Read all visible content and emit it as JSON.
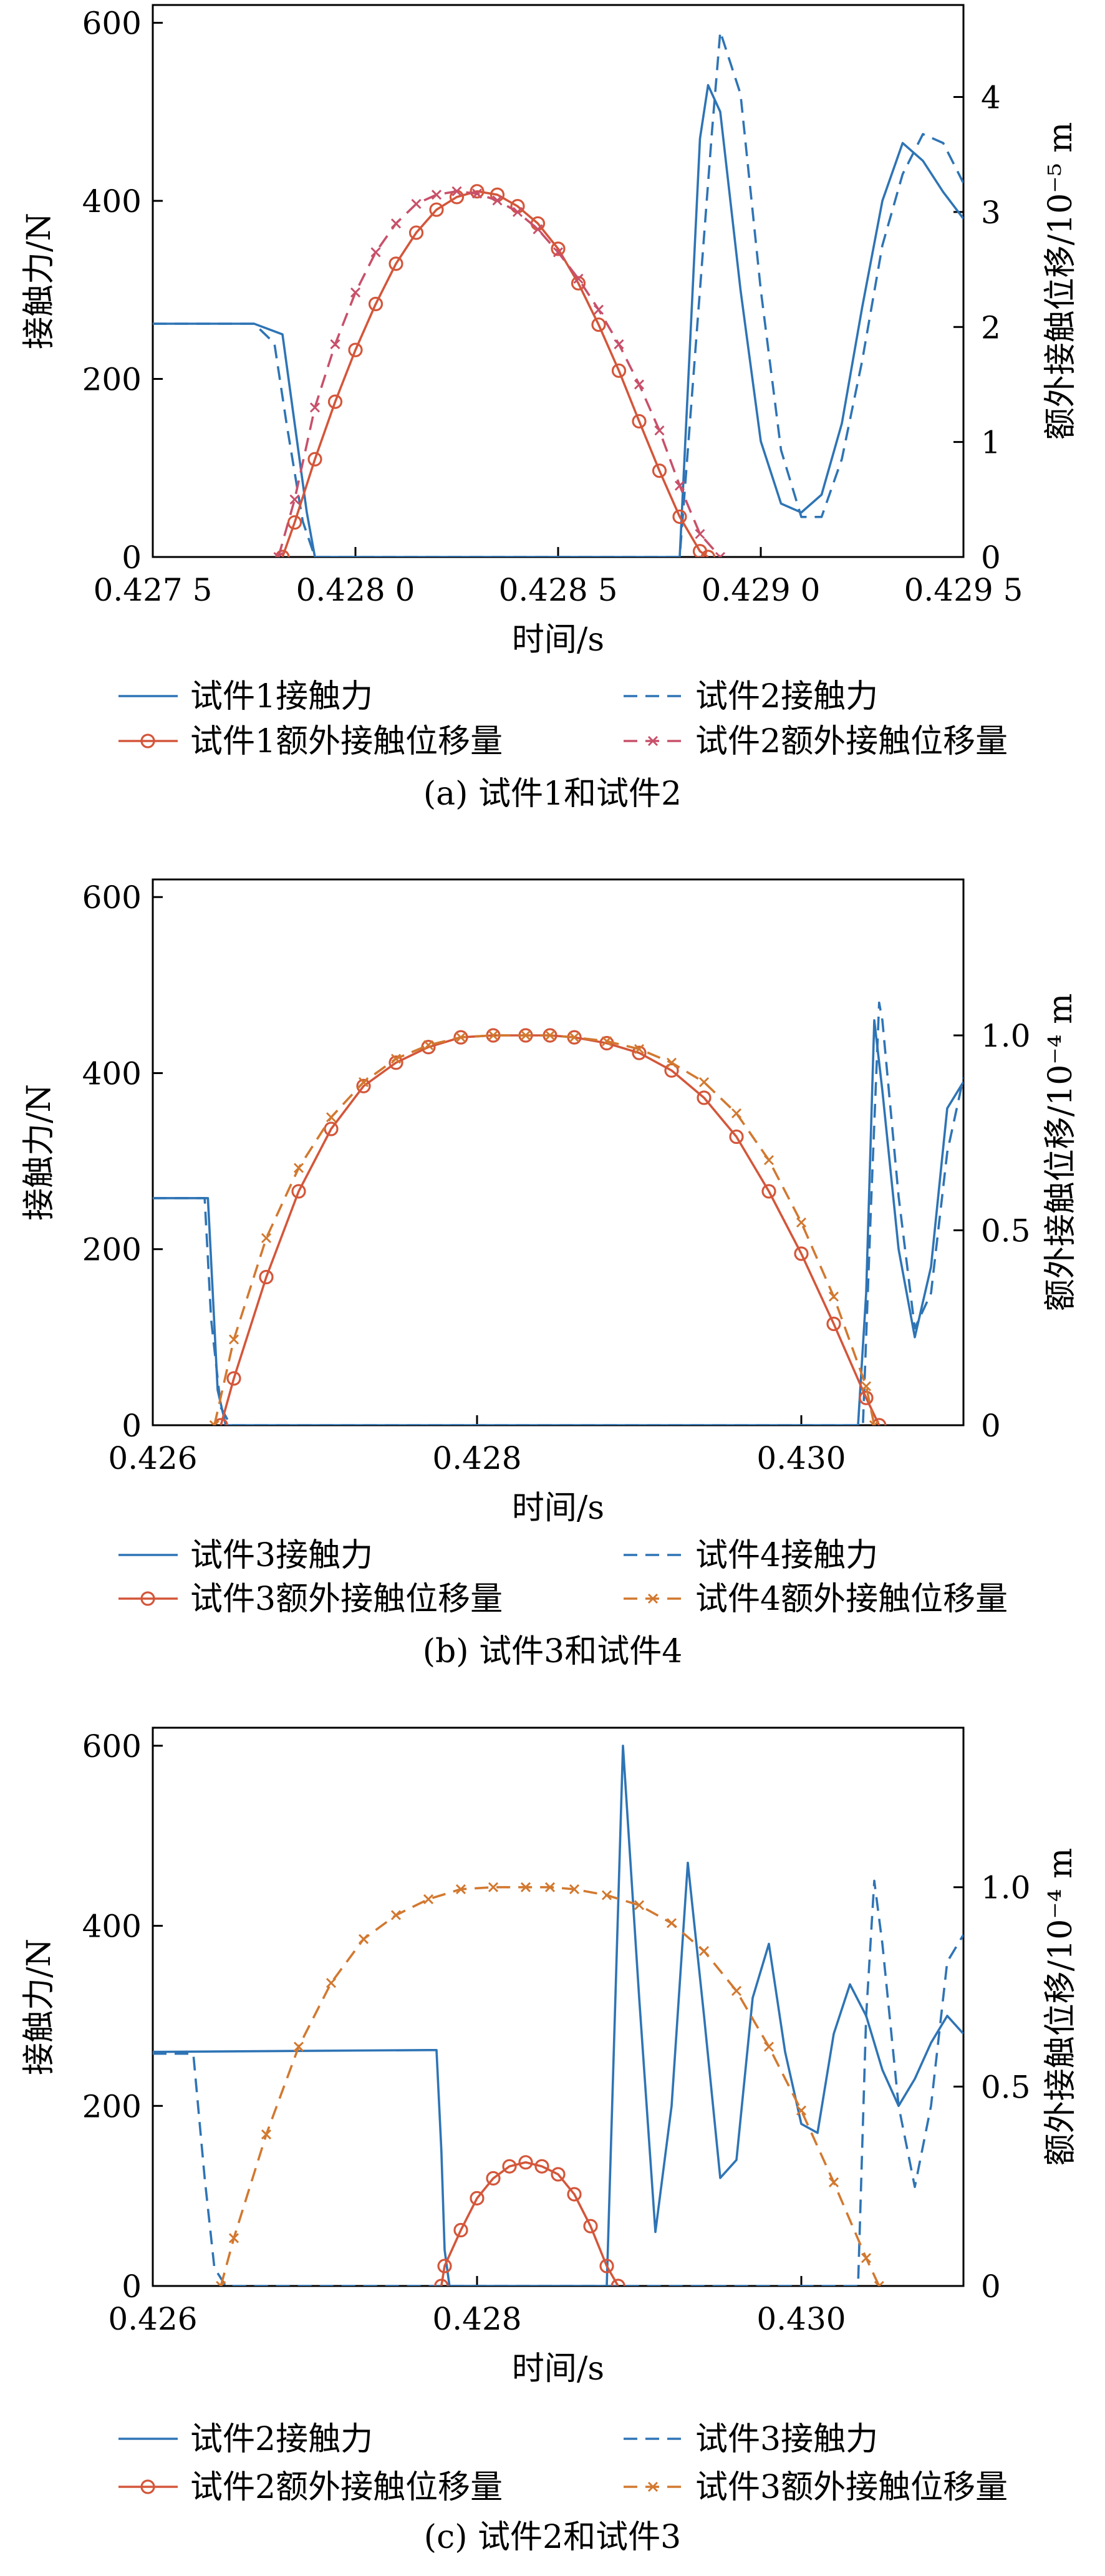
{
  "colors": {
    "force_blue": "#2E74B5",
    "disp_red": "#D4563A",
    "disp_orange": "#D2782F",
    "disp_pink": "#C8506A",
    "axis": "#000000"
  },
  "chart_data": [
    {
      "type": "line",
      "panel": "a",
      "caption": "(a) 试件1和试件2",
      "xlabel": "时间/s",
      "ylabel_left": "接触力/N",
      "ylabel_right": "额外接触位移/10⁻⁵ m",
      "xlim": [
        0.4275,
        0.4295
      ],
      "ylim_left": [
        0,
        620
      ],
      "ylim_right": [
        0,
        4.8
      ],
      "x_ticks": [
        0.4275,
        0.428,
        0.4285,
        0.429,
        0.4295
      ],
      "x_tick_labels": [
        "0.427 5",
        "0.428 0",
        "0.428 5",
        "0.429 0",
        "0.429 5"
      ],
      "y_ticks_left": [
        0,
        200,
        400,
        600
      ],
      "y_tick_labels_left": [
        "0",
        "200",
        "400",
        "600"
      ],
      "y_ticks_right": [
        0,
        1,
        2,
        3,
        4
      ],
      "y_tick_labels_right": [
        "0",
        "1",
        "2",
        "3",
        "4"
      ],
      "legend_ncols": 2,
      "series": [
        {
          "name": "试件1接触力",
          "axis": "left",
          "style": "solid",
          "marker": "none",
          "color": "#2E74B5",
          "x": [
            0.4275,
            0.42775,
            0.42782,
            0.42785,
            0.42788,
            0.4279,
            0.42795,
            0.4288,
            0.42885,
            0.42887,
            0.4289,
            0.42895,
            0.429,
            0.42905,
            0.4291,
            0.42915,
            0.4292,
            0.42925,
            0.4293,
            0.42935,
            0.4294,
            0.42945,
            0.4295
          ],
          "y": [
            262,
            262,
            250,
            150,
            50,
            0,
            0,
            0,
            470,
            530,
            500,
            300,
            130,
            60,
            50,
            70,
            150,
            280,
            400,
            465,
            445,
            410,
            380
          ]
        },
        {
          "name": "试件2接触力",
          "axis": "left",
          "style": "dashed",
          "marker": "none",
          "color": "#2E74B5",
          "x": [
            0.4275,
            0.42775,
            0.4278,
            0.42783,
            0.42787,
            0.4279,
            0.4288,
            0.42888,
            0.4289,
            0.42895,
            0.429,
            0.42905,
            0.4291,
            0.42915,
            0.4292,
            0.42925,
            0.4293,
            0.42935,
            0.4294,
            0.42945,
            0.4295
          ],
          "y": [
            262,
            262,
            240,
            150,
            40,
            0,
            0,
            480,
            590,
            520,
            300,
            120,
            45,
            45,
            110,
            220,
            350,
            430,
            475,
            465,
            420
          ]
        },
        {
          "name": "试件1额外接触位移量",
          "axis": "right",
          "style": "solid",
          "marker": "circle",
          "color": "#D4563A",
          "x": [
            0.42782,
            0.42785,
            0.4279,
            0.42795,
            0.428,
            0.42805,
            0.4281,
            0.42815,
            0.4282,
            0.42825,
            0.4283,
            0.42835,
            0.4284,
            0.42845,
            0.4285,
            0.42855,
            0.4286,
            0.42865,
            0.4287,
            0.42875,
            0.4288,
            0.42885,
            0.42887
          ],
          "y": [
            0,
            0.3,
            0.85,
            1.35,
            1.8,
            2.2,
            2.55,
            2.82,
            3.02,
            3.13,
            3.18,
            3.15,
            3.05,
            2.9,
            2.68,
            2.38,
            2.02,
            1.62,
            1.18,
            0.75,
            0.35,
            0.05,
            0
          ]
        },
        {
          "name": "试件2额外接触位移量",
          "axis": "right",
          "style": "dashed",
          "marker": "x",
          "color": "#C8506A",
          "x": [
            0.42781,
            0.42785,
            0.4279,
            0.42795,
            0.428,
            0.42805,
            0.4281,
            0.42815,
            0.4282,
            0.42825,
            0.4283,
            0.42835,
            0.4284,
            0.42845,
            0.4285,
            0.42855,
            0.4286,
            0.42865,
            0.4287,
            0.42875,
            0.4288,
            0.42885,
            0.4289
          ],
          "y": [
            0,
            0.5,
            1.3,
            1.85,
            2.3,
            2.65,
            2.9,
            3.07,
            3.15,
            3.18,
            3.16,
            3.1,
            3.0,
            2.85,
            2.65,
            2.42,
            2.15,
            1.85,
            1.5,
            1.1,
            0.62,
            0.2,
            0
          ]
        }
      ]
    },
    {
      "type": "line",
      "panel": "b",
      "caption": "(b) 试件3和试件4",
      "xlabel": "时间/s",
      "ylabel_left": "接触力/N",
      "ylabel_right": "额外接触位移/10⁻⁴ m",
      "xlim": [
        0.426,
        0.431
      ],
      "ylim_left": [
        0,
        620
      ],
      "ylim_right": [
        0,
        1.4
      ],
      "x_ticks": [
        0.426,
        0.428,
        0.43
      ],
      "x_tick_labels": [
        "0.426",
        "0.428",
        "0.430"
      ],
      "y_ticks_left": [
        0,
        200,
        400,
        600
      ],
      "y_tick_labels_left": [
        "0",
        "200",
        "400",
        "600"
      ],
      "y_ticks_right": [
        0,
        0.5,
        1.0
      ],
      "y_tick_labels_right": [
        "0",
        "0.5",
        "1.0"
      ],
      "legend_ncols": 2,
      "series": [
        {
          "name": "试件3接触力",
          "axis": "left",
          "style": "solid",
          "marker": "none",
          "color": "#2E74B5",
          "x": [
            0.426,
            0.42575,
            0.42634,
            0.42637,
            0.4264,
            0.42645,
            0.4303,
            0.43035,
            0.4304,
            0.43045,
            0.4305,
            0.4306,
            0.4307,
            0.4308,
            0.4309,
            0.431
          ],
          "y": [
            258,
            258,
            258,
            150,
            40,
            0,
            0,
            0,
            150,
            460,
            380,
            200,
            100,
            180,
            360,
            390
          ]
        },
        {
          "name": "试件4接触力",
          "axis": "left",
          "style": "dashed",
          "marker": "none",
          "color": "#2E74B5",
          "x": [
            0.426,
            0.42632,
            0.42636,
            0.42642,
            0.42648,
            0.43032,
            0.43038,
            0.43043,
            0.43048,
            0.4305,
            0.4306,
            0.4307,
            0.4308,
            0.4309,
            0.431
          ],
          "y": [
            258,
            258,
            120,
            20,
            0,
            0,
            0,
            250,
            480,
            460,
            260,
            110,
            150,
            310,
            395
          ]
        },
        {
          "name": "试件3额外接触位移量",
          "axis": "right",
          "style": "solid",
          "marker": "circle",
          "color": "#D4563A",
          "x": [
            0.42642,
            0.4265,
            0.4267,
            0.4269,
            0.4271,
            0.4273,
            0.4275,
            0.4277,
            0.4279,
            0.4281,
            0.4283,
            0.42845,
            0.4286,
            0.4288,
            0.429,
            0.4292,
            0.4294,
            0.4296,
            0.4298,
            0.43,
            0.4302,
            0.4304,
            0.43048
          ],
          "y": [
            0,
            0.12,
            0.38,
            0.6,
            0.76,
            0.87,
            0.93,
            0.97,
            0.995,
            1.0,
            1.0,
            1.0,
            0.995,
            0.98,
            0.955,
            0.91,
            0.84,
            0.74,
            0.6,
            0.44,
            0.26,
            0.07,
            0
          ]
        },
        {
          "name": "试件4额外接触位移量",
          "axis": "right",
          "style": "dashed",
          "marker": "x",
          "color": "#D2782F",
          "x": [
            0.42638,
            0.4265,
            0.4267,
            0.4269,
            0.4271,
            0.4273,
            0.4275,
            0.4277,
            0.4279,
            0.4281,
            0.4283,
            0.42845,
            0.4286,
            0.4288,
            0.429,
            0.4292,
            0.4294,
            0.4296,
            0.4298,
            0.43,
            0.4302,
            0.4304,
            0.43045
          ],
          "y": [
            0,
            0.22,
            0.48,
            0.66,
            0.79,
            0.88,
            0.94,
            0.975,
            0.995,
            1.0,
            1.0,
            1.0,
            0.995,
            0.985,
            0.965,
            0.93,
            0.88,
            0.8,
            0.68,
            0.52,
            0.33,
            0.1,
            0
          ]
        }
      ]
    },
    {
      "type": "line",
      "panel": "c",
      "caption": "(c) 试件2和试件3",
      "xlabel": "时间/s",
      "ylabel_left": "接触力/N",
      "ylabel_right": "额外接触位移/10⁻⁴ m",
      "xlim": [
        0.426,
        0.431
      ],
      "ylim_left": [
        0,
        620
      ],
      "ylim_right": [
        0,
        1.4
      ],
      "x_ticks": [
        0.426,
        0.428,
        0.43
      ],
      "x_tick_labels": [
        "0.426",
        "0.428",
        "0.430"
      ],
      "y_ticks_left": [
        0,
        200,
        400,
        600
      ],
      "y_tick_labels_left": [
        "0",
        "200",
        "400",
        "600"
      ],
      "y_ticks_right": [
        0,
        0.5,
        1.0
      ],
      "y_tick_labels_right": [
        "0",
        "0.5",
        "1.0"
      ],
      "legend_ncols": 2,
      "series": [
        {
          "name": "试件2接触力",
          "axis": "left",
          "style": "solid",
          "marker": "none",
          "color": "#2E74B5",
          "x": [
            0.426,
            0.4277,
            0.42775,
            0.42778,
            0.4278,
            0.42783,
            0.4288,
            0.42885,
            0.4289,
            0.429,
            0.4291,
            0.4292,
            0.4293,
            0.4294,
            0.4295,
            0.4296,
            0.4297,
            0.4298,
            0.4299,
            0.43,
            0.4301,
            0.4302,
            0.4303,
            0.4304,
            0.4305,
            0.4306,
            0.4307,
            0.4308,
            0.4309,
            0.431
          ],
          "y": [
            260,
            262,
            262,
            150,
            40,
            0,
            0,
            300,
            600,
            320,
            60,
            200,
            470,
            300,
            120,
            140,
            320,
            380,
            260,
            180,
            170,
            280,
            335,
            300,
            240,
            200,
            230,
            270,
            300,
            280
          ]
        },
        {
          "name": "试件3接触力",
          "axis": "left",
          "style": "dashed",
          "marker": "none",
          "color": "#2E74B5",
          "x": [
            0.426,
            0.42625,
            0.42632,
            0.42638,
            0.42645,
            0.4302,
            0.43035,
            0.4304,
            0.43045,
            0.4305,
            0.4306,
            0.4307,
            0.4308,
            0.4309,
            0.431
          ],
          "y": [
            258,
            258,
            120,
            20,
            0,
            0,
            0,
            300,
            450,
            380,
            200,
            110,
            200,
            360,
            390
          ]
        },
        {
          "name": "试件2额外接触位移量",
          "axis": "right",
          "style": "solid",
          "marker": "circle",
          "color": "#D4563A",
          "x": [
            0.42778,
            0.4278,
            0.4279,
            0.428,
            0.4281,
            0.4282,
            0.4283,
            0.4284,
            0.4285,
            0.4286,
            0.4287,
            0.4288,
            0.42887
          ],
          "y": [
            0,
            0.05,
            0.14,
            0.22,
            0.27,
            0.3,
            0.31,
            0.3,
            0.28,
            0.23,
            0.15,
            0.05,
            0
          ]
        },
        {
          "name": "试件3额外接触位移量",
          "axis": "right",
          "style": "dashed",
          "marker": "x",
          "color": "#D2782F",
          "x": [
            0.42642,
            0.4265,
            0.4267,
            0.4269,
            0.4271,
            0.4273,
            0.4275,
            0.4277,
            0.4279,
            0.4281,
            0.4283,
            0.42845,
            0.4286,
            0.4288,
            0.429,
            0.4292,
            0.4294,
            0.4296,
            0.4298,
            0.43,
            0.4302,
            0.4304,
            0.43048
          ],
          "y": [
            0,
            0.12,
            0.38,
            0.6,
            0.76,
            0.87,
            0.93,
            0.97,
            0.995,
            1.0,
            1.0,
            1.0,
            0.995,
            0.98,
            0.955,
            0.91,
            0.84,
            0.74,
            0.6,
            0.44,
            0.26,
            0.07,
            0
          ]
        }
      ]
    }
  ]
}
